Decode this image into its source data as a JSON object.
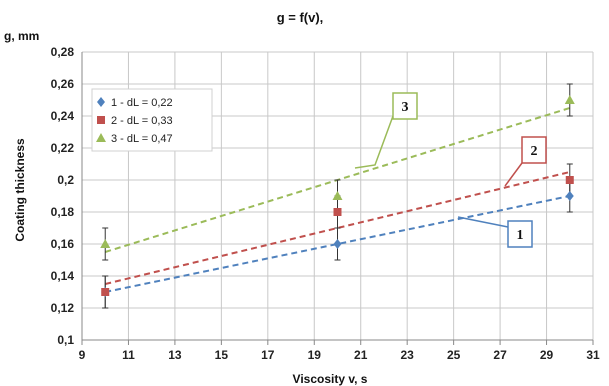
{
  "chart_data": {
    "type": "scatter",
    "title": "g = f(v),",
    "ylabel_top": "g, mm",
    "ylabel": "Coating thickness",
    "xlabel": "Viscosity  v, s",
    "xlim": [
      9,
      31
    ],
    "ylim": [
      0.1,
      0.28
    ],
    "x_ticks": [
      "9",
      "11",
      "13",
      "15",
      "17",
      "19",
      "21",
      "23",
      "25",
      "27",
      "29",
      "31"
    ],
    "y_ticks": [
      "0,1",
      "0,12",
      "0,14",
      "0,16",
      "0,18",
      "0,2",
      "0,22",
      "0,24",
      "0,26",
      "0,28"
    ],
    "grid": true,
    "legend_position": "top-left",
    "series": [
      {
        "name": "1 - dL = 0,22",
        "color": "#4f81bd",
        "marker": "diamond",
        "x": [
          10,
          20,
          30
        ],
        "y": [
          0.13,
          0.16,
          0.19
        ],
        "err": [
          0.01,
          0.01,
          0.01
        ],
        "trendline": {
          "x": [
            10,
            30
          ],
          "y": [
            0.13,
            0.19
          ]
        },
        "callout": "1",
        "callout_color": "#4f81bd"
      },
      {
        "name": "2 - dL = 0,33",
        "color": "#c0504d",
        "marker": "square",
        "x": [
          10,
          20,
          30
        ],
        "y": [
          0.13,
          0.18,
          0.2
        ],
        "err": [
          0.01,
          0.01,
          0.01
        ],
        "trendline": {
          "x": [
            10,
            30
          ],
          "y": [
            0.135,
            0.205
          ]
        },
        "callout": "2",
        "callout_color": "#c0504d"
      },
      {
        "name": "3 - dL = 0,47",
        "color": "#9bbb59",
        "marker": "triangle",
        "x": [
          10,
          20,
          30
        ],
        "y": [
          0.16,
          0.19,
          0.25
        ],
        "err": [
          0.01,
          0.01,
          0.01
        ],
        "trendline": {
          "x": [
            10,
            30
          ],
          "y": [
            0.155,
            0.245
          ]
        },
        "callout": "3",
        "callout_color": "#9bbb59"
      }
    ]
  }
}
